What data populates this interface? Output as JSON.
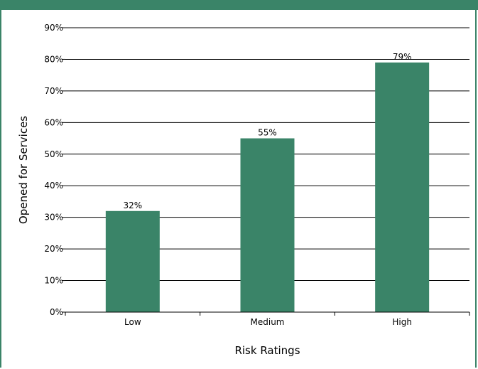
{
  "page": {
    "title_visible_fragment": "",
    "title_strip_color": "#3a8468"
  },
  "chart_data": {
    "type": "bar",
    "categories": [
      "Low",
      "Medium",
      "High"
    ],
    "values": [
      32,
      55,
      79
    ],
    "data_labels": [
      "32%",
      "55%",
      "79%"
    ],
    "xlabel": "Risk Ratings",
    "ylabel": "Opened for Services",
    "ylim": [
      0,
      90
    ],
    "yticks": [
      0,
      10,
      20,
      30,
      40,
      50,
      60,
      70,
      80,
      90
    ],
    "ytick_labels": [
      "0%",
      "10%",
      "20%",
      "30%",
      "40%",
      "50%",
      "60%",
      "70%",
      "80%",
      "90%"
    ],
    "grid": true,
    "bar_color": "#3a8468"
  }
}
